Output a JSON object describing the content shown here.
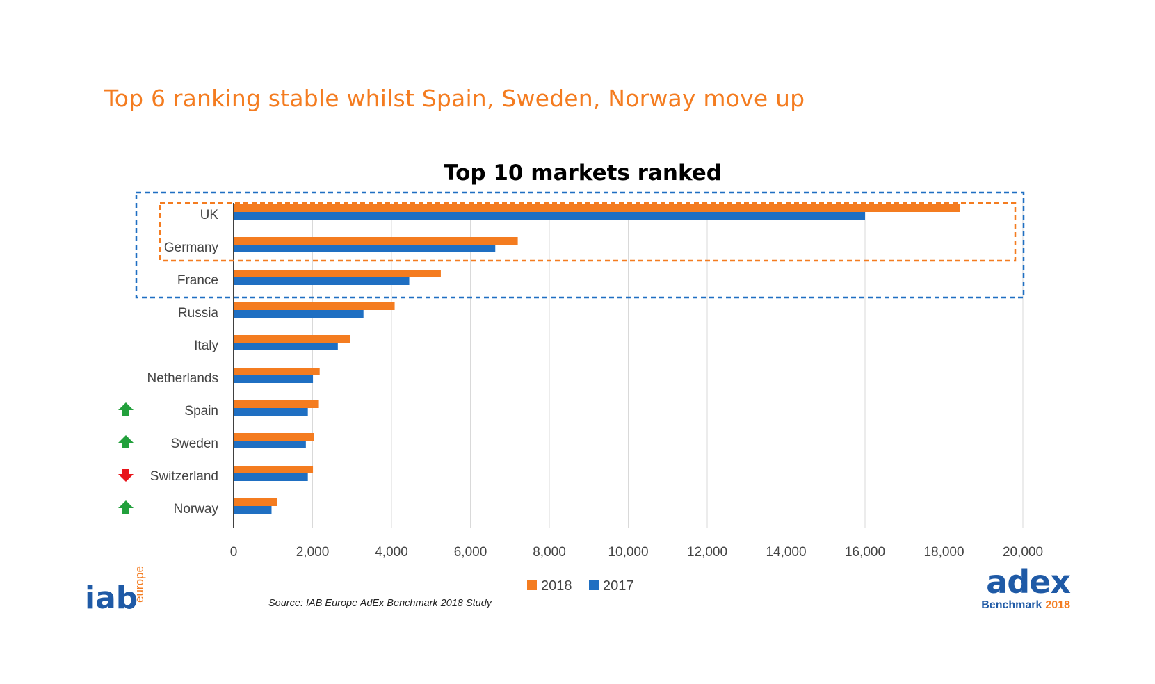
{
  "slide": {
    "title": "Top 6 ranking stable whilst Spain, Sweden, Norway move up",
    "source": "Source: IAB Europe AdEx Benchmark 2018 Study"
  },
  "logos": {
    "iab_main": "iab",
    "iab_sub": "europe",
    "adex_main": "adex",
    "adex_sub1": "Benchmark",
    "adex_sub2": "2018"
  },
  "colors": {
    "accent": "#f47c20",
    "series_2018": "#f47c20",
    "series_2017": "#1f6fc2",
    "grid": "#d9d9d9",
    "up": "#22a03c",
    "down": "#e8141a",
    "highlight_top3": "#1f6fc2",
    "highlight_top2": "#f47c20",
    "adex_blue": "#1f5aa6"
  },
  "chart_data": {
    "type": "bar",
    "orientation": "horizontal",
    "title": "Top 10 markets ranked",
    "categories": [
      "UK",
      "Germany",
      "France",
      "Russia",
      "Italy",
      "Netherlands",
      "Spain",
      "Sweden",
      "Switzerland",
      "Norway"
    ],
    "series": [
      {
        "name": "2018",
        "values": [
          18400,
          7200,
          5250,
          4080,
          2950,
          2180,
          2160,
          2040,
          2010,
          1100
        ]
      },
      {
        "name": "2017",
        "values": [
          16000,
          6630,
          4450,
          3290,
          2640,
          2010,
          1880,
          1830,
          1880,
          960
        ]
      }
    ],
    "xlim": [
      0,
      20000
    ],
    "xticks": [
      0,
      2000,
      4000,
      6000,
      8000,
      10000,
      12000,
      14000,
      16000,
      18000,
      20000
    ],
    "xtick_labels": [
      "0",
      "2,000",
      "4,000",
      "6,000",
      "8,000",
      "10,000",
      "12,000",
      "14,000",
      "16,000",
      "18,000",
      "20,000"
    ],
    "rank_change": [
      "",
      "",
      "",
      "",
      "",
      "",
      "up",
      "up",
      "down",
      "up"
    ],
    "grid": true,
    "legend": "bottom-center",
    "highlights": [
      {
        "style": "dashed",
        "color": "blue",
        "categories": [
          "UK",
          "Germany",
          "France"
        ]
      },
      {
        "style": "dashed",
        "color": "orange",
        "categories": [
          "UK",
          "Germany"
        ]
      }
    ]
  }
}
